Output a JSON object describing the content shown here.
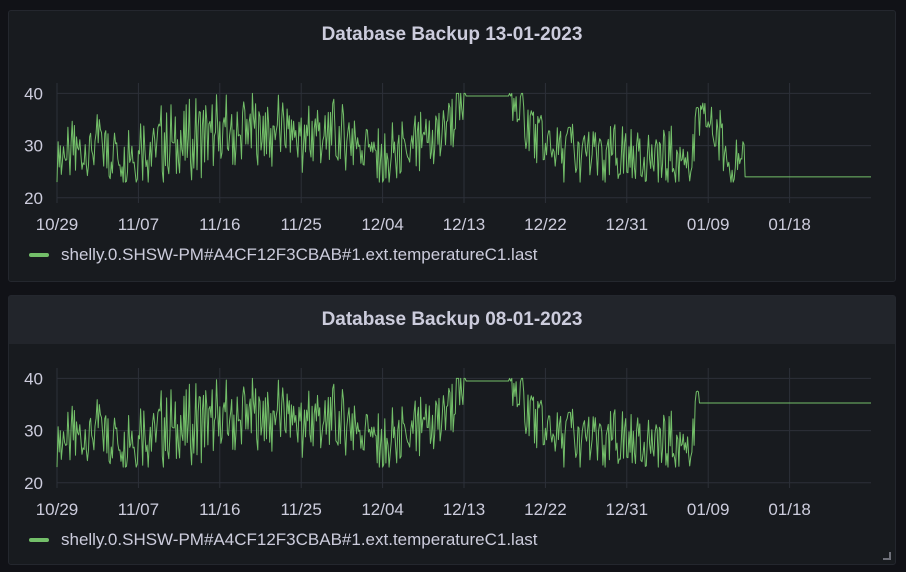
{
  "colors": {
    "series": "#73bf69",
    "grid": "#2c3039",
    "text": "#ccccdc"
  },
  "chart_data": [
    {
      "type": "line",
      "title": "Database Backup 13-01-2023",
      "x_ticks": [
        "10/29",
        "11/07",
        "11/16",
        "11/25",
        "12/04",
        "12/13",
        "12/22",
        "12/31",
        "01/09",
        "01/18"
      ],
      "y_ticks": [
        "20",
        "30",
        "40"
      ],
      "ylim": [
        19,
        42
      ],
      "xlim": [
        "2022-10-29",
        "2023-01-27"
      ],
      "legend_position": "bottom-left",
      "series": [
        {
          "name": "shelly.0.SHSW-PM#A4CF12F3CBAB#1.ext.temperatureC1.last",
          "x": [
            "2022-10-29",
            "2022-11-04",
            "2022-11-10",
            "2022-11-16",
            "2022-11-22",
            "2022-11-28",
            "2022-12-02",
            "2022-12-04",
            "2022-12-08",
            "2022-12-11",
            "2022-12-13",
            "2022-12-17",
            "2022-12-18",
            "2022-12-22",
            "2022-12-26",
            "2022-12-31",
            "2023-01-04",
            "2023-01-07",
            "2023-01-08",
            "2023-01-09",
            "2023-01-13",
            "2023-01-27"
          ],
          "y": [
            28,
            29,
            30,
            32,
            33,
            32,
            31,
            27,
            29,
            33,
            39.5,
            39.5,
            39.5,
            29,
            28,
            28,
            27,
            28,
            35,
            35,
            24,
            24
          ]
        }
      ]
    },
    {
      "type": "line",
      "title": "Database Backup 08-01-2023",
      "x_ticks": [
        "10/29",
        "11/07",
        "11/16",
        "11/25",
        "12/04",
        "12/13",
        "12/22",
        "12/31",
        "01/09",
        "01/18"
      ],
      "y_ticks": [
        "20",
        "30",
        "40"
      ],
      "ylim": [
        19,
        42
      ],
      "xlim": [
        "2022-10-29",
        "2023-01-27"
      ],
      "legend_position": "bottom-left",
      "series": [
        {
          "name": "shelly.0.SHSW-PM#A4CF12F3CBAB#1.ext.temperatureC1.last",
          "x": [
            "2022-10-29",
            "2022-11-04",
            "2022-11-10",
            "2022-11-16",
            "2022-11-22",
            "2022-11-28",
            "2022-12-02",
            "2022-12-04",
            "2022-12-08",
            "2022-12-11",
            "2022-12-13",
            "2022-12-17",
            "2022-12-18",
            "2022-12-22",
            "2022-12-26",
            "2022-12-31",
            "2023-01-04",
            "2023-01-07",
            "2023-01-08",
            "2023-01-27"
          ],
          "y": [
            28,
            29,
            30,
            32,
            33,
            32,
            31,
            27,
            29,
            33,
            39.5,
            39.5,
            39.5,
            29,
            28,
            28,
            27,
            28,
            35.3,
            35.3
          ]
        }
      ]
    }
  ]
}
